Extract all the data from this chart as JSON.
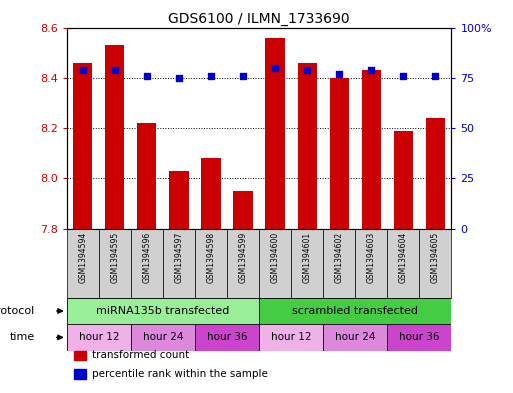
{
  "title": "GDS6100 / ILMN_1733690",
  "samples": [
    "GSM1394594",
    "GSM1394595",
    "GSM1394596",
    "GSM1394597",
    "GSM1394598",
    "GSM1394599",
    "GSM1394600",
    "GSM1394601",
    "GSM1394602",
    "GSM1394603",
    "GSM1394604",
    "GSM1394605"
  ],
  "bar_values": [
    8.46,
    8.53,
    8.22,
    8.03,
    8.08,
    7.95,
    8.56,
    8.46,
    8.4,
    8.43,
    8.19,
    8.24
  ],
  "percentile_values": [
    79,
    79,
    76,
    75,
    76,
    76,
    80,
    79,
    77,
    79,
    76,
    76
  ],
  "ylim_left": [
    7.8,
    8.6
  ],
  "ylim_right": [
    0,
    100
  ],
  "bar_color": "#cc0000",
  "dot_color": "#0000cc",
  "sample_box_color": "#d0d0d0",
  "grid_color": "#000000",
  "protocol_rows": [
    {
      "label": "miRNA135b transfected",
      "color": "#99ee99",
      "start": 0,
      "end": 6
    },
    {
      "label": "scrambled transfected",
      "color": "#44cc44",
      "start": 6,
      "end": 12
    }
  ],
  "time_rows": [
    {
      "label": "hour 12",
      "color": "#f0b0e8",
      "start": 0,
      "end": 2
    },
    {
      "label": "hour 24",
      "color": "#dd88dd",
      "start": 2,
      "end": 4
    },
    {
      "label": "hour 36",
      "color": "#cc44cc",
      "start": 4,
      "end": 6
    },
    {
      "label": "hour 12",
      "color": "#f0b0e8",
      "start": 6,
      "end": 8
    },
    {
      "label": "hour 24",
      "color": "#dd88dd",
      "start": 8,
      "end": 10
    },
    {
      "label": "hour 36",
      "color": "#cc44cc",
      "start": 10,
      "end": 12
    }
  ],
  "legend_items": [
    {
      "label": "transformed count",
      "color": "#cc0000"
    },
    {
      "label": "percentile rank within the sample",
      "color": "#0000cc"
    }
  ],
  "tick_left": [
    7.8,
    8.0,
    8.2,
    8.4,
    8.6
  ],
  "tick_right": [
    0,
    25,
    50,
    75,
    100
  ],
  "right_tick_labels": [
    "0",
    "25",
    "50",
    "75",
    "100%"
  ],
  "left_label": "protocol",
  "time_label": "time"
}
